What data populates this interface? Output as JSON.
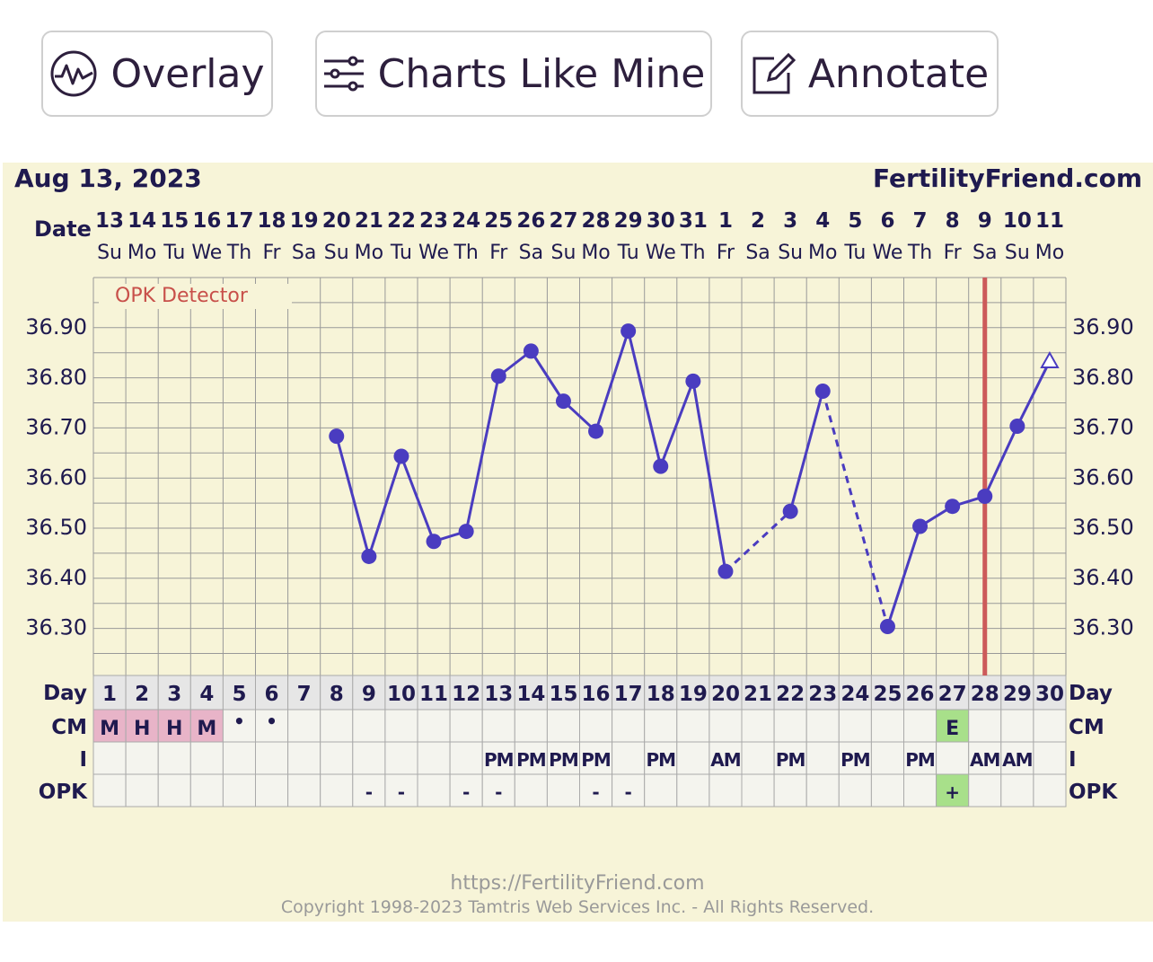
{
  "toolbar": {
    "overlay": {
      "label": "Overlay",
      "icon": "overlay-waveform-icon"
    },
    "charts_like_mine": {
      "label": "Charts Like Mine",
      "icon": "sliders-icon"
    },
    "annotate": {
      "label": "Annotate",
      "icon": "edit-pencil-icon"
    }
  },
  "header": {
    "date_title": "Aug 13, 2023",
    "brand": "FertilityFriend.com",
    "date_row_label": "Date"
  },
  "overlay_label": "OPK Detector",
  "rows": {
    "day_label": "Day",
    "cm_label": "CM",
    "i_label": "I",
    "opk_label": "OPK"
  },
  "footer": {
    "url": "https://FertilityFriend.com",
    "copyright": "Copyright 1998-2023 Tamtris Web Services Inc. - All Rights Reserved."
  },
  "colors": {
    "chart_bg": "#f7f4d8",
    "grid": "#999999",
    "line": "#4a3cc0",
    "text_dark": "#1f1a4f",
    "ovulation_line": "#cc5a5a",
    "cm_pink": "#e8b4c8",
    "fertile_green": "#a8e08a",
    "footer_text": "#999999",
    "overlay_text": "#c8504a"
  },
  "chart_data": {
    "type": "line",
    "title": "Aug 13, 2023",
    "ylim": [
      36.2,
      36.99
    ],
    "yticks": [
      "36.90",
      "36.80",
      "36.70",
      "36.60",
      "36.50",
      "36.40",
      "36.30"
    ],
    "dates": [
      "13",
      "14",
      "15",
      "16",
      "17",
      "18",
      "19",
      "20",
      "21",
      "22",
      "23",
      "24",
      "25",
      "26",
      "27",
      "28",
      "29",
      "30",
      "31",
      "1",
      "2",
      "3",
      "4",
      "5",
      "6",
      "7",
      "8",
      "9",
      "10",
      "11"
    ],
    "weekdays": [
      "Su",
      "Mo",
      "Tu",
      "We",
      "Th",
      "Fr",
      "Sa",
      "Su",
      "Mo",
      "Tu",
      "We",
      "Th",
      "Fr",
      "Sa",
      "Su",
      "Mo",
      "Tu",
      "We",
      "Th",
      "Fr",
      "Sa",
      "Su",
      "Mo",
      "Tu",
      "We",
      "Th",
      "Fr",
      "Sa",
      "Su",
      "Mo"
    ],
    "days": [
      1,
      2,
      3,
      4,
      5,
      6,
      7,
      8,
      9,
      10,
      11,
      12,
      13,
      14,
      15,
      16,
      17,
      18,
      19,
      20,
      21,
      22,
      23,
      24,
      25,
      26,
      27,
      28,
      29,
      30
    ],
    "temps": [
      null,
      null,
      null,
      null,
      null,
      null,
      null,
      36.68,
      36.44,
      36.64,
      36.47,
      36.49,
      36.8,
      36.85,
      36.75,
      36.69,
      36.89,
      36.62,
      36.79,
      36.41,
      null,
      36.53,
      36.77,
      null,
      36.3,
      36.5,
      36.54,
      36.56,
      36.7,
      36.83
    ],
    "dashed_segments": [
      [
        20,
        22
      ],
      [
        23,
        25
      ]
    ],
    "open_marker_day": 30,
    "ovulation_day": 28,
    "cm": [
      "M",
      "H",
      "H",
      "M",
      "•",
      "•",
      "",
      "",
      "",
      "",
      "",
      "",
      "",
      "",
      "",
      "",
      "",
      "",
      "",
      "",
      "",
      "",
      "",
      "",
      "",
      "",
      "E",
      "",
      "",
      ""
    ],
    "intercourse": [
      "",
      "",
      "",
      "",
      "",
      "",
      "",
      "",
      "",
      "",
      "",
      "",
      "PM",
      "PM",
      "PM",
      "PM",
      "",
      "PM",
      "",
      "AM",
      "",
      "PM",
      "",
      "PM",
      "",
      "PM",
      "",
      "AM",
      "AM",
      ""
    ],
    "opk": [
      "",
      "",
      "",
      "",
      "",
      "",
      "",
      "",
      "-",
      "-",
      "",
      "-",
      "-",
      "",
      "",
      "-",
      "-",
      "",
      "",
      "",
      "",
      "",
      "",
      "",
      "",
      "",
      "+",
      "",
      "",
      ""
    ]
  }
}
